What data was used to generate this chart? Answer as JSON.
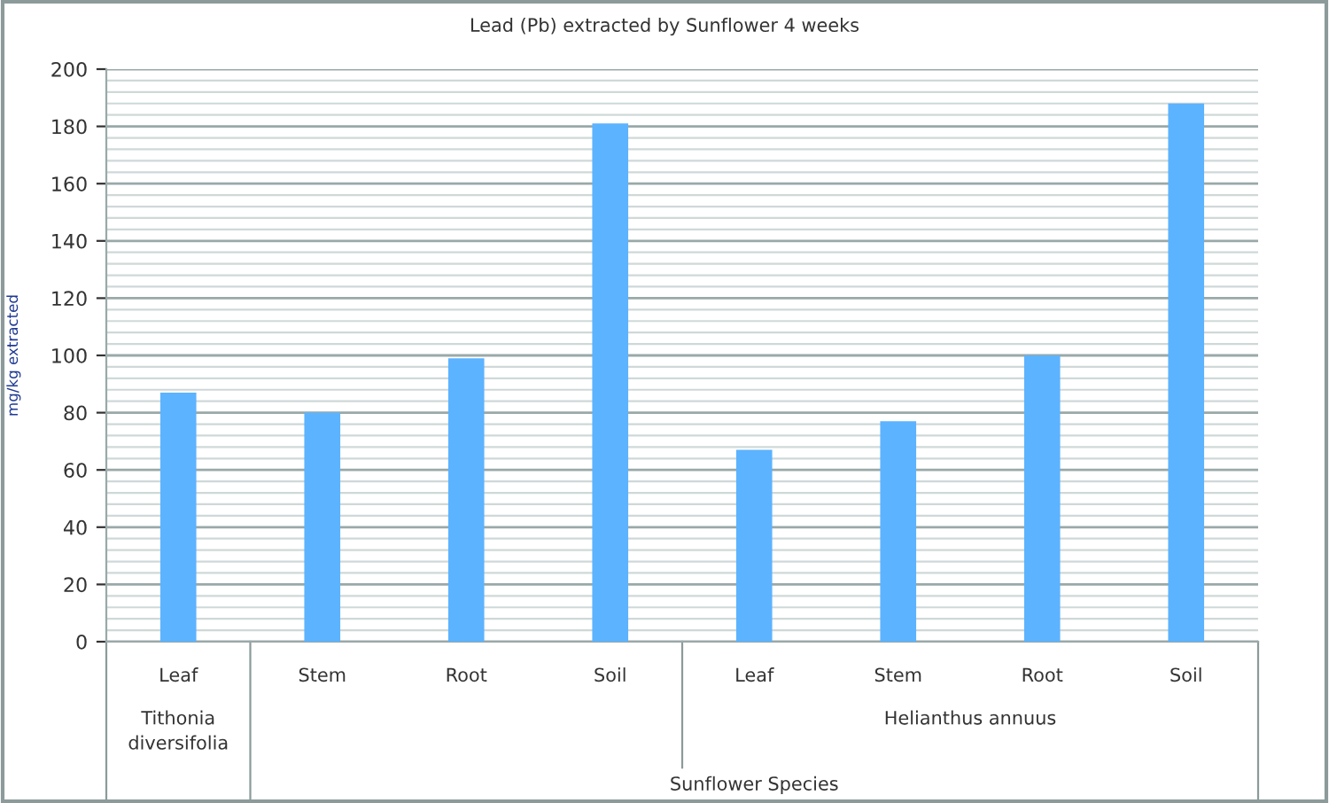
{
  "chart_data": {
    "type": "bar",
    "title": "Lead (Pb) extracted by Sunflower 4 weeks",
    "categories": [
      "Leaf",
      "Stem",
      "Root",
      "Soil",
      "Leaf",
      "Stem",
      "Root",
      "Soil"
    ],
    "values": [
      87,
      80,
      99,
      181,
      67,
      77,
      100,
      188
    ],
    "color": "#5cb3ff",
    "ylabel": "mg/kg extracted",
    "annotations": [
      "Tithonia diversifolia",
      "Helianthus annuus",
      "Sunflower Species"
    ],
    "ylim": [
      0,
      200
    ],
    "yticks": [
      0,
      20,
      40,
      60,
      80,
      100,
      120,
      140,
      160,
      180,
      200
    ],
    "grid": "y"
  }
}
